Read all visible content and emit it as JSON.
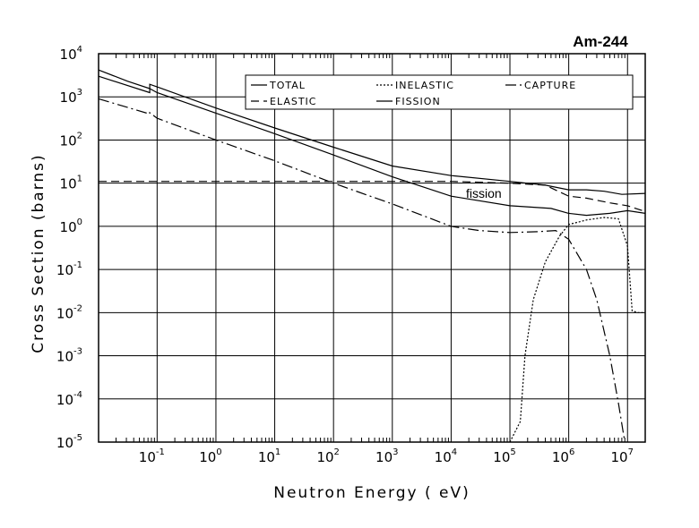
{
  "chart_data": {
    "type": "line",
    "title": "Am-244",
    "xlabel": "Neutron Energy ( eV)",
    "ylabel": "Cross Section (barns)",
    "xscale": "log",
    "yscale": "log",
    "xlim": [
      0.0101,
      20000000
    ],
    "ylim": [
      1e-05,
      10000
    ],
    "grid": true,
    "legend_position": "top-right",
    "x_ticks": [
      {
        "base": "10",
        "exp": "-1",
        "value": 0.1
      },
      {
        "base": "10",
        "exp": "0",
        "value": 1
      },
      {
        "base": "10",
        "exp": "1",
        "value": 10
      },
      {
        "base": "10",
        "exp": "2",
        "value": 100
      },
      {
        "base": "10",
        "exp": "3",
        "value": 1000
      },
      {
        "base": "10",
        "exp": "4",
        "value": 10000
      },
      {
        "base": "10",
        "exp": "5",
        "value": 100000
      },
      {
        "base": "10",
        "exp": "6",
        "value": 1000000
      },
      {
        "base": "10",
        "exp": "7",
        "value": 10000000
      }
    ],
    "y_ticks": [
      {
        "base": "10",
        "exp": "4",
        "value": 10000
      },
      {
        "base": "10",
        "exp": "3",
        "value": 1000
      },
      {
        "base": "10",
        "exp": "2",
        "value": 100
      },
      {
        "base": "10",
        "exp": "1",
        "value": 10
      },
      {
        "base": "10",
        "exp": "0",
        "value": 1
      },
      {
        "base": "10",
        "exp": "-1",
        "value": 0.1
      },
      {
        "base": "10",
        "exp": "-2",
        "value": 0.01
      },
      {
        "base": "10",
        "exp": "-3",
        "value": 0.001
      },
      {
        "base": "10",
        "exp": "-4",
        "value": 0.0001
      },
      {
        "base": "10",
        "exp": "-5",
        "value": 1e-05
      }
    ],
    "annotations": [
      {
        "text": "fission",
        "x": 56000,
        "y": 5.0
      }
    ],
    "series": [
      {
        "name": "TOTAL",
        "style": "solid",
        "points": [
          [
            0.0101,
            4200
          ],
          [
            0.0316,
            2300
          ],
          [
            0.075,
            1550
          ],
          [
            0.075,
            1950
          ],
          [
            0.1,
            1700
          ],
          [
            1,
            550
          ],
          [
            10,
            190
          ],
          [
            100,
            68
          ],
          [
            1000,
            25
          ],
          [
            10000,
            15
          ],
          [
            100000,
            11
          ],
          [
            400000,
            9
          ],
          [
            1000000,
            7
          ],
          [
            2000000,
            7
          ],
          [
            4000000,
            6.5
          ],
          [
            8000000,
            5.5
          ],
          [
            20000000,
            5.8
          ]
        ]
      },
      {
        "name": "INELASTIC",
        "style": "dotted",
        "points": [
          [
            100000,
            1e-05
          ],
          [
            150000,
            3e-05
          ],
          [
            180000,
            0.001
          ],
          [
            250000,
            0.02
          ],
          [
            400000,
            0.15
          ],
          [
            700000,
            0.6
          ],
          [
            1000000,
            1.1
          ],
          [
            2000000,
            1.4
          ],
          [
            4000000,
            1.6
          ],
          [
            7000000,
            1.5
          ],
          [
            10000000,
            0.35
          ],
          [
            12000000,
            0.011
          ],
          [
            15000000,
            0.01
          ],
          [
            20000000,
            0.01
          ]
        ]
      },
      {
        "name": "CAPTURE",
        "style": "dash-dot",
        "points": [
          [
            0.0101,
            900
          ],
          [
            0.075,
            400
          ],
          [
            0.075,
            430
          ],
          [
            0.1,
            320
          ],
          [
            1,
            100
          ],
          [
            10,
            33
          ],
          [
            100,
            10
          ],
          [
            1000,
            3.3
          ],
          [
            10000,
            1.0
          ],
          [
            30000,
            0.8
          ],
          [
            100000,
            0.72
          ],
          [
            300000,
            0.75
          ],
          [
            600000,
            0.8
          ],
          [
            1000000,
            0.5
          ],
          [
            2000000,
            0.1
          ],
          [
            3000000,
            0.02
          ],
          [
            5000000,
            0.001
          ],
          [
            7000000,
            8e-05
          ],
          [
            9000000,
            1e-05
          ]
        ]
      },
      {
        "name": "ELASTIC",
        "style": "dashed",
        "points": [
          [
            0.0101,
            11
          ],
          [
            1,
            11
          ],
          [
            100,
            11
          ],
          [
            10000,
            11
          ],
          [
            100000,
            10
          ],
          [
            400000,
            9
          ],
          [
            1000000,
            5
          ],
          [
            2000000,
            4.5
          ],
          [
            5000000,
            3.5
          ],
          [
            10000000,
            3
          ],
          [
            20000000,
            2.2
          ]
        ]
      },
      {
        "name": "FISSION",
        "style": "solid",
        "points": [
          [
            0.0101,
            3000
          ],
          [
            0.075,
            1250
          ],
          [
            0.075,
            1550
          ],
          [
            0.1,
            1250
          ],
          [
            1,
            420
          ],
          [
            10,
            140
          ],
          [
            100,
            45
          ],
          [
            1000,
            14
          ],
          [
            10000,
            5
          ],
          [
            100000,
            3
          ],
          [
            500000,
            2.6
          ],
          [
            1000000,
            2.0
          ],
          [
            2000000,
            1.8
          ],
          [
            5000000,
            2.0
          ],
          [
            10000000,
            2.3
          ],
          [
            20000000,
            2.0
          ]
        ]
      }
    ]
  }
}
